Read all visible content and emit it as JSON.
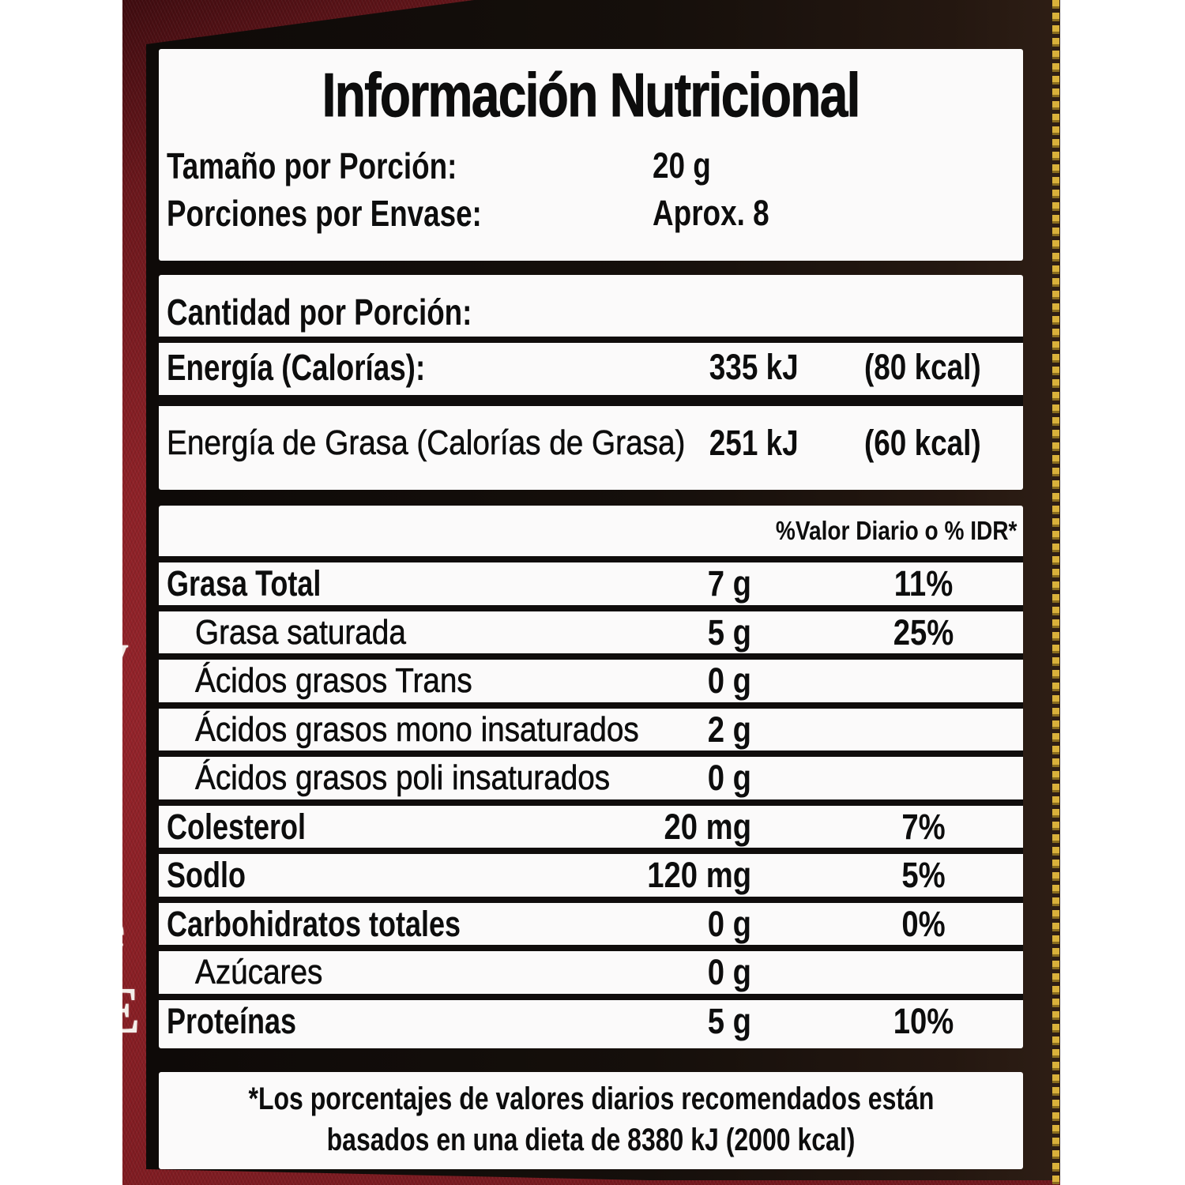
{
  "label": {
    "title": "Información Nutricional",
    "serving": {
      "size_label": "Tamaño por Porción:",
      "size_value": "20 g",
      "count_label": "Porciones por Envase:",
      "count_value": "Aprox. 8"
    },
    "per_serving": {
      "header": "Cantidad por Porción:",
      "rows": [
        {
          "label": "Energía (Calorías):",
          "kj": "335 kJ",
          "kcal": "(80 kcal)"
        },
        {
          "label": "Energía de Grasa (Calorías de Grasa)",
          "kj": "251 kJ",
          "kcal": "(60 kcal)"
        }
      ]
    },
    "nutrients": {
      "dv_header": "%Valor Diario o % IDR*",
      "rows": [
        {
          "name": "Grasa Total",
          "amount": "7 g",
          "dv": "11%"
        },
        {
          "name": "Grasa saturada",
          "amount": "5 g",
          "dv": "25%"
        },
        {
          "name": "Ácidos grasos Trans",
          "amount": "0 g",
          "dv": ""
        },
        {
          "name": "Ácidos grasos mono insaturados",
          "amount": "2 g",
          "dv": ""
        },
        {
          "name": "Ácidos grasos poli insaturados",
          "amount": "0 g",
          "dv": ""
        },
        {
          "name": "Colesterol",
          "amount": "20 mg",
          "dv": "7%"
        },
        {
          "name": "Sodlo",
          "amount": "120 mg",
          "dv": "5%"
        },
        {
          "name": "Carbohidratos totales",
          "amount": "0 g",
          "dv": "0%"
        },
        {
          "name": "Azúcares",
          "amount": "0 g",
          "dv": ""
        },
        {
          "name": "Proteínas",
          "amount": "5 g",
          "dv": "10%"
        }
      ]
    },
    "footnote_line1": "*Los porcentajes de valores diarios recomendados están",
    "footnote_line2": "basados en una dieta de 8380 kJ (2000 kcal)",
    "edge_text": [
      "y",
      ",",
      ":",
      ",",
      "e",
      "E"
    ],
    "colors": {
      "background_red": "#8e1f26",
      "panel_black": "#150f0b",
      "box_white": "#fbfafa",
      "gold_trim": "#d9b13b"
    }
  }
}
